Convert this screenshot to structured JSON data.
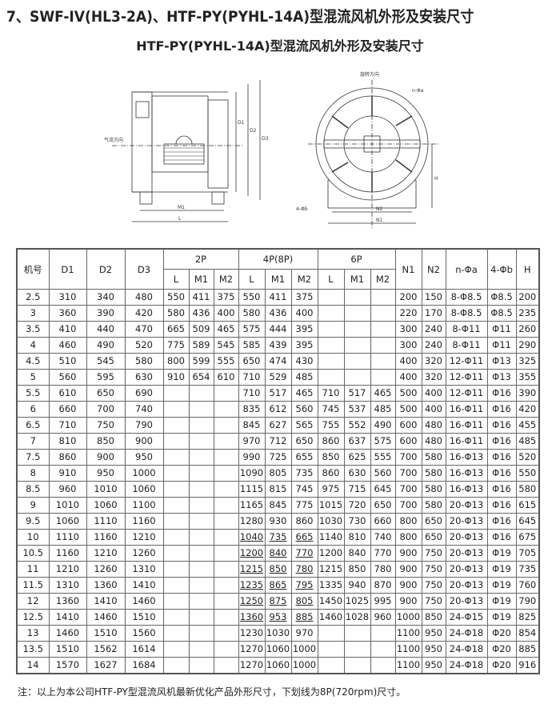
{
  "title": "7、SWF-IV(HL3-2A)、HTF-PY(PYHL-14A)型混流风机外形及安装尺寸",
  "subtitle": "HTF-PY(PYHL-14A)型混流风机外形及安装尺寸",
  "drawing_side": {
    "airflow_label": "气流方向",
    "dim_labels": [
      "M1",
      "L",
      "D1",
      "D2",
      "D3"
    ]
  },
  "drawing_front": {
    "rotation_label": "旋转方向",
    "hole_label": "n-Φa",
    "foot_hole_label": "4-Φb",
    "dim_labels": [
      "N2",
      "N1",
      "H"
    ]
  },
  "table": {
    "headers": {
      "model": "机号",
      "d1": "D1",
      "d2": "D2",
      "d3": "D3",
      "groups": [
        "2P",
        "4P(8P)",
        "6P"
      ],
      "sub": [
        "L",
        "M1",
        "M2"
      ],
      "n1": "N1",
      "n2": "N2",
      "na": "n-Φa",
      "b": "4-Φb",
      "h": "H"
    },
    "rows": [
      {
        "c": [
          "2.5",
          "310",
          "340",
          "480",
          "550",
          "411",
          "375",
          "550",
          "411",
          "375",
          "",
          "",
          "",
          "200",
          "150",
          "8-Φ8.5",
          "Φ8.5",
          "200"
        ],
        "u": false
      },
      {
        "c": [
          "3",
          "360",
          "390",
          "420",
          "580",
          "436",
          "400",
          "580",
          "436",
          "400",
          "",
          "",
          "",
          "220",
          "170",
          "8-Φ8.5",
          "Φ8.5",
          "235"
        ],
        "u": false
      },
      {
        "c": [
          "3.5",
          "410",
          "440",
          "470",
          "665",
          "509",
          "465",
          "575",
          "444",
          "395",
          "",
          "",
          "",
          "300",
          "240",
          "8-Φ11",
          "Φ11",
          "260"
        ],
        "u": false
      },
      {
        "c": [
          "4",
          "460",
          "490",
          "520",
          "775",
          "589",
          "545",
          "585",
          "439",
          "395",
          "",
          "",
          "",
          "300",
          "240",
          "8-Φ11",
          "Φ11",
          "290"
        ],
        "u": false
      },
      {
        "c": [
          "4.5",
          "510",
          "545",
          "580",
          "800",
          "599",
          "555",
          "650",
          "474",
          "430",
          "",
          "",
          "",
          "400",
          "320",
          "12-Φ11",
          "Φ13",
          "325"
        ],
        "u": false
      },
      {
        "c": [
          "5",
          "560",
          "595",
          "630",
          "910",
          "654",
          "610",
          "710",
          "529",
          "485",
          "",
          "",
          "",
          "400",
          "320",
          "12-Φ11",
          "Φ13",
          "355"
        ],
        "u": false
      },
      {
        "c": [
          "5.5",
          "610",
          "650",
          "690",
          "",
          "",
          "",
          "710",
          "517",
          "465",
          "710",
          "517",
          "465",
          "500",
          "400",
          "12-Φ11",
          "Φ16",
          "390"
        ],
        "u": false
      },
      {
        "c": [
          "6",
          "660",
          "700",
          "740",
          "",
          "",
          "",
          "835",
          "612",
          "560",
          "745",
          "537",
          "485",
          "500",
          "400",
          "16-Φ11",
          "Φ16",
          "420"
        ],
        "u": false
      },
      {
        "c": [
          "6.5",
          "710",
          "750",
          "790",
          "",
          "",
          "",
          "845",
          "627",
          "565",
          "755",
          "552",
          "490",
          "600",
          "480",
          "16-Φ11",
          "Φ16",
          "455"
        ],
        "u": false
      },
      {
        "c": [
          "7",
          "810",
          "850",
          "900",
          "",
          "",
          "",
          "970",
          "712",
          "650",
          "860",
          "637",
          "575",
          "600",
          "480",
          "16-Φ11",
          "Φ16",
          "485"
        ],
        "u": false
      },
      {
        "c": [
          "7.5",
          "860",
          "900",
          "950",
          "",
          "",
          "",
          "990",
          "725",
          "655",
          "850",
          "625",
          "555",
          "700",
          "580",
          "16-Φ13",
          "Φ16",
          "520"
        ],
        "u": false
      },
      {
        "c": [
          "8",
          "910",
          "950",
          "1000",
          "",
          "",
          "",
          "1090",
          "805",
          "735",
          "860",
          "630",
          "560",
          "700",
          "580",
          "16-Φ13",
          "Φ16",
          "550"
        ],
        "u": false
      },
      {
        "c": [
          "8.5",
          "960",
          "1010",
          "1060",
          "",
          "",
          "",
          "1115",
          "815",
          "745",
          "975",
          "715",
          "645",
          "700",
          "580",
          "16-Φ13",
          "Φ16",
          "580"
        ],
        "u": false
      },
      {
        "c": [
          "9",
          "1010",
          "1060",
          "1100",
          "",
          "",
          "",
          "1165",
          "845",
          "775",
          "1015",
          "720",
          "650",
          "700",
          "580",
          "20-Φ13",
          "Φ16",
          "615"
        ],
        "u": false
      },
      {
        "c": [
          "9.5",
          "1060",
          "1110",
          "1160",
          "",
          "",
          "",
          "1280",
          "930",
          "860",
          "1030",
          "730",
          "660",
          "800",
          "650",
          "20-Φ13",
          "Φ16",
          "645"
        ],
        "u": false
      },
      {
        "c": [
          "10",
          "1110",
          "1160",
          "1210",
          "",
          "",
          "",
          "1040",
          "735",
          "665",
          "1140",
          "810",
          "740",
          "800",
          "650",
          "20-Φ13",
          "Φ16",
          "675"
        ],
        "u": true
      },
      {
        "c": [
          "10.5",
          "1160",
          "1210",
          "1260",
          "",
          "",
          "",
          "1200",
          "840",
          "770",
          "1200",
          "840",
          "770",
          "900",
          "750",
          "20-Φ13",
          "Φ19",
          "705"
        ],
        "u": true
      },
      {
        "c": [
          "11",
          "1210",
          "1260",
          "1310",
          "",
          "",
          "",
          "1215",
          "850",
          "780",
          "1215",
          "850",
          "780",
          "900",
          "750",
          "20-Φ13",
          "Φ19",
          "735"
        ],
        "u": true
      },
      {
        "c": [
          "11.5",
          "1310",
          "1360",
          "1410",
          "",
          "",
          "",
          "1235",
          "865",
          "795",
          "1335",
          "940",
          "870",
          "900",
          "750",
          "20-Φ13",
          "Φ19",
          "760"
        ],
        "u": true
      },
      {
        "c": [
          "12",
          "1360",
          "1410",
          "1460",
          "",
          "",
          "",
          "1250",
          "875",
          "805",
          "1450",
          "1025",
          "995",
          "900",
          "750",
          "20-Φ13",
          "Φ19",
          "790"
        ],
        "u": true
      },
      {
        "c": [
          "12.5",
          "1410",
          "1460",
          "1510",
          "",
          "",
          "",
          "1360",
          "953",
          "885",
          "1460",
          "1028",
          "960",
          "1000",
          "850",
          "24-Φ15",
          "Φ19",
          "825"
        ],
        "u": true
      },
      {
        "c": [
          "13",
          "1460",
          "1510",
          "1560",
          "",
          "",
          "",
          "1230",
          "1030",
          "970",
          "",
          "",
          "",
          "1100",
          "950",
          "24-Φ18",
          "Φ20",
          "854"
        ],
        "u": false
      },
      {
        "c": [
          "13.5",
          "1510",
          "1562",
          "1614",
          "",
          "",
          "",
          "1270",
          "1060",
          "1000",
          "",
          "",
          "",
          "1100",
          "950",
          "24-Φ18",
          "Φ20",
          "885"
        ],
        "u": false
      },
      {
        "c": [
          "14",
          "1570",
          "1627",
          "1684",
          "",
          "",
          "",
          "1270",
          "1060",
          "1000",
          "",
          "",
          "",
          "1100",
          "950",
          "24-Φ18",
          "Φ20",
          "916"
        ],
        "u": false
      }
    ]
  },
  "note": "注：以上为本公司HTF-PY型混流风机最新优化产品外形尺寸，下划线为8P(720rpm)尺寸。"
}
